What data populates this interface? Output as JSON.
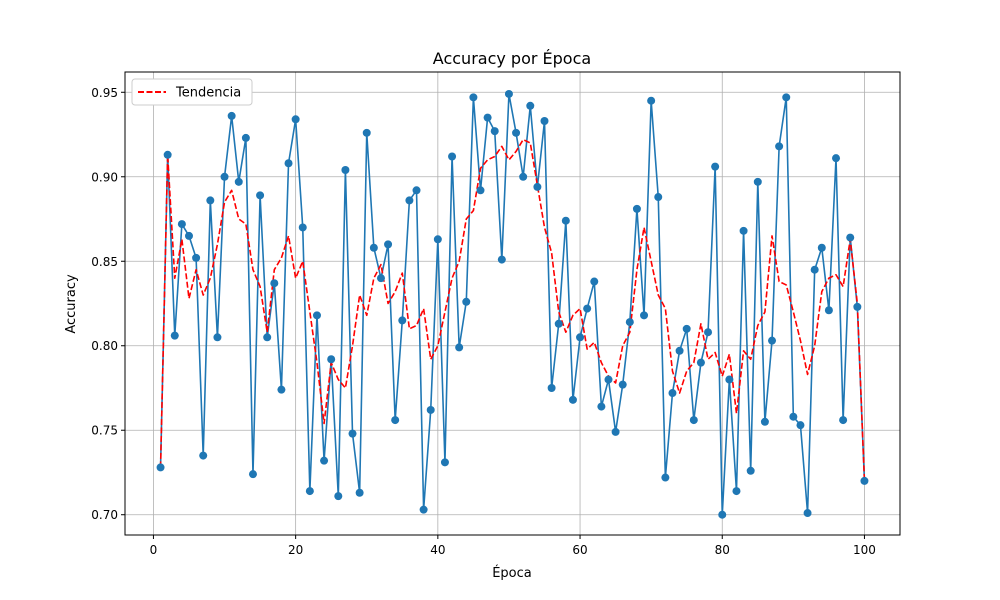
{
  "chart_data": {
    "type": "line",
    "title": "Accuracy por Época",
    "xlabel": "Época",
    "ylabel": "Accuracy",
    "xlim": [
      -4,
      105
    ],
    "ylim": [
      0.688,
      0.962
    ],
    "xticks": [
      0,
      20,
      40,
      60,
      80,
      100
    ],
    "yticks": [
      0.7,
      0.75,
      0.8,
      0.85,
      0.9,
      0.95
    ],
    "grid": true,
    "legend_position": "top-left",
    "x": [
      1,
      2,
      3,
      4,
      5,
      6,
      7,
      8,
      9,
      10,
      11,
      12,
      13,
      14,
      15,
      16,
      17,
      18,
      19,
      20,
      21,
      22,
      23,
      24,
      25,
      26,
      27,
      28,
      29,
      30,
      31,
      32,
      33,
      34,
      35,
      36,
      37,
      38,
      39,
      40,
      41,
      42,
      43,
      44,
      45,
      46,
      47,
      48,
      49,
      50,
      51,
      52,
      53,
      54,
      55,
      56,
      57,
      58,
      59,
      60,
      61,
      62,
      63,
      64,
      65,
      66,
      67,
      68,
      69,
      70,
      71,
      72,
      73,
      74,
      75,
      76,
      77,
      78,
      79,
      80,
      81,
      82,
      83,
      84,
      85,
      86,
      87,
      88,
      89,
      90,
      91,
      92,
      93,
      94,
      95,
      96,
      97,
      98,
      99,
      100
    ],
    "series": [
      {
        "style": "solid-markers",
        "color": "#1f77b4",
        "values": [
          0.728,
          0.913,
          0.806,
          0.872,
          0.865,
          0.852,
          0.735,
          0.886,
          0.805,
          0.9,
          0.936,
          0.897,
          0.923,
          0.724,
          0.889,
          0.805,
          0.837,
          0.774,
          0.908,
          0.934,
          0.87,
          0.714,
          0.818,
          0.732,
          0.792,
          0.711,
          0.904,
          0.748,
          0.713,
          0.926,
          0.858,
          0.84,
          0.86,
          0.756,
          0.815,
          0.886,
          0.892,
          0.703,
          0.762,
          0.863,
          0.731,
          0.912,
          0.799,
          0.826,
          0.947,
          0.892,
          0.935,
          0.927,
          0.851,
          0.949,
          0.926,
          0.9,
          0.942,
          0.894,
          0.933,
          0.775,
          0.813,
          0.874,
          0.768,
          0.805,
          0.822,
          0.838,
          0.764,
          0.78,
          0.749,
          0.777,
          0.814,
          0.881,
          0.818,
          0.945,
          0.888,
          0.722,
          0.772,
          0.797,
          0.81,
          0.756,
          0.79,
          0.808,
          0.906,
          0.7,
          0.78,
          0.714,
          0.868,
          0.726,
          0.897,
          0.755,
          0.803,
          0.918,
          0.947,
          0.758,
          0.753,
          0.701,
          0.845,
          0.858,
          0.821,
          0.911,
          0.756,
          0.864,
          0.823,
          0.72
        ]
      },
      {
        "name": "Tendencia",
        "style": "dashed",
        "color": "#ff0000",
        "values": [
          0.728,
          0.913,
          0.84,
          0.863,
          0.828,
          0.845,
          0.83,
          0.84,
          0.86,
          0.885,
          0.892,
          0.875,
          0.872,
          0.845,
          0.835,
          0.808,
          0.845,
          0.852,
          0.865,
          0.84,
          0.85,
          0.82,
          0.79,
          0.754,
          0.79,
          0.78,
          0.775,
          0.8,
          0.83,
          0.818,
          0.84,
          0.848,
          0.825,
          0.832,
          0.843,
          0.81,
          0.812,
          0.822,
          0.792,
          0.8,
          0.82,
          0.84,
          0.85,
          0.875,
          0.88,
          0.905,
          0.91,
          0.912,
          0.918,
          0.91,
          0.915,
          0.922,
          0.92,
          0.895,
          0.87,
          0.855,
          0.82,
          0.808,
          0.818,
          0.822,
          0.798,
          0.802,
          0.79,
          0.782,
          0.778,
          0.8,
          0.808,
          0.845,
          0.87,
          0.85,
          0.83,
          0.822,
          0.785,
          0.772,
          0.785,
          0.79,
          0.813,
          0.792,
          0.796,
          0.782,
          0.795,
          0.76,
          0.797,
          0.792,
          0.812,
          0.82,
          0.865,
          0.838,
          0.836,
          0.82,
          0.803,
          0.783,
          0.8,
          0.832,
          0.84,
          0.842,
          0.835,
          0.863,
          0.825,
          0.72
        ]
      }
    ]
  }
}
